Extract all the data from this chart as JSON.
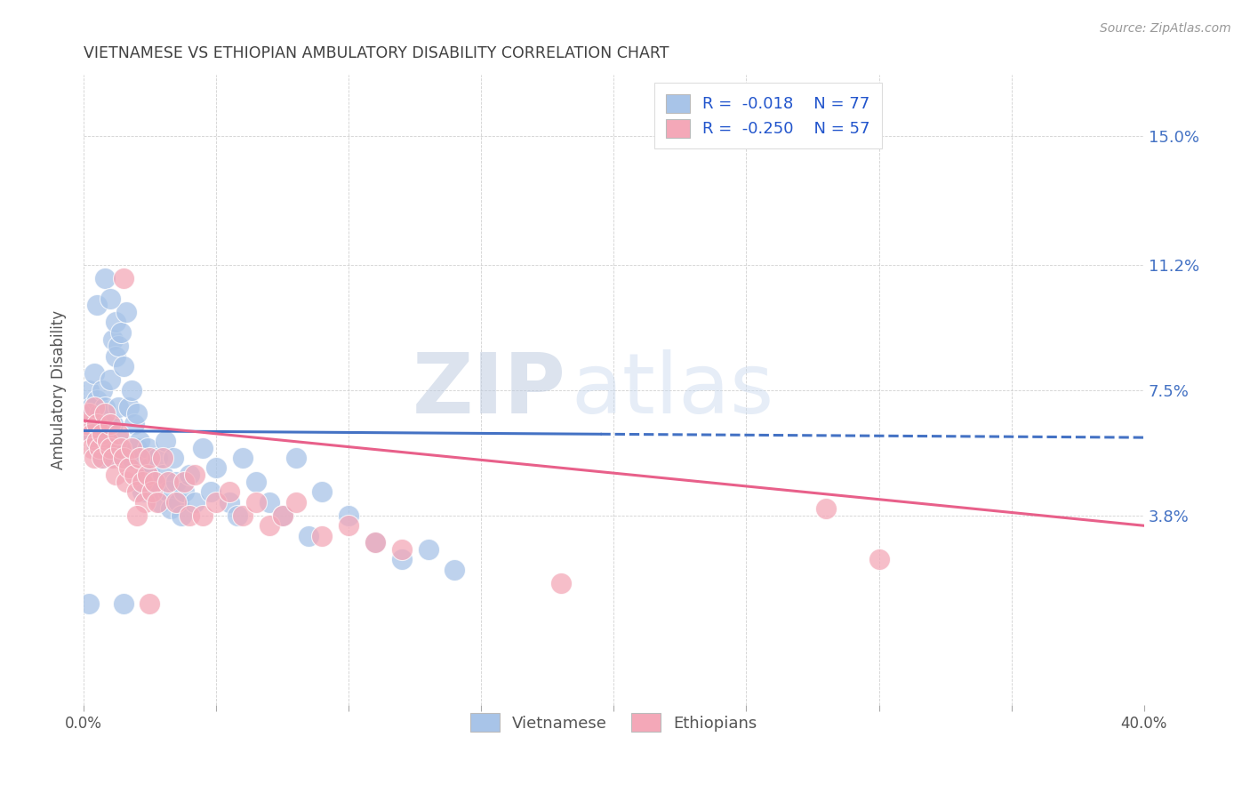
{
  "title": "VIETNAMESE VS ETHIOPIAN AMBULATORY DISABILITY CORRELATION CHART",
  "source": "Source: ZipAtlas.com",
  "ylabel": "Ambulatory Disability",
  "ytick_labels": [
    "15.0%",
    "11.2%",
    "7.5%",
    "3.8%"
  ],
  "ytick_values": [
    0.15,
    0.112,
    0.075,
    0.038
  ],
  "xmin": 0.0,
  "xmax": 0.4,
  "ymin": -0.018,
  "ymax": 0.168,
  "watermark_zip": "ZIP",
  "watermark_atlas": "atlas",
  "legend_r1": "-0.018",
  "legend_n1": "77",
  "legend_r2": "-0.250",
  "legend_n2": "57",
  "color_vietnamese": "#A8C4E8",
  "color_ethiopians": "#F4A8B8",
  "line_color_vietnamese": "#4472C4",
  "line_color_ethiopians": "#E8608A",
  "background_color": "#FFFFFF",
  "grid_color": "#CCCCCC",
  "title_color": "#404040",
  "axis_label_color": "#555555",
  "right_tick_color": "#4472C4",
  "viet_trend_x": [
    0.0,
    0.195,
    0.4
  ],
  "viet_trend_y": [
    0.063,
    0.062,
    0.061
  ],
  "viet_trend_solid_end": 0.195,
  "eth_trend_x": [
    0.0,
    0.4
  ],
  "eth_trend_y": [
    0.066,
    0.035
  ],
  "vietnamese_scatter": [
    [
      0.001,
      0.068
    ],
    [
      0.002,
      0.075
    ],
    [
      0.003,
      0.062
    ],
    [
      0.003,
      0.07
    ],
    [
      0.004,
      0.065
    ],
    [
      0.004,
      0.08
    ],
    [
      0.005,
      0.058
    ],
    [
      0.005,
      0.072
    ],
    [
      0.006,
      0.068
    ],
    [
      0.006,
      0.06
    ],
    [
      0.007,
      0.075
    ],
    [
      0.007,
      0.055
    ],
    [
      0.008,
      0.07
    ],
    [
      0.008,
      0.062
    ],
    [
      0.009,
      0.065
    ],
    [
      0.009,
      0.058
    ],
    [
      0.01,
      0.078
    ],
    [
      0.01,
      0.055
    ],
    [
      0.011,
      0.065
    ],
    [
      0.011,
      0.09
    ],
    [
      0.012,
      0.095
    ],
    [
      0.012,
      0.085
    ],
    [
      0.013,
      0.088
    ],
    [
      0.013,
      0.07
    ],
    [
      0.014,
      0.092
    ],
    [
      0.014,
      0.06
    ],
    [
      0.015,
      0.082
    ],
    [
      0.015,
      0.055
    ],
    [
      0.016,
      0.098
    ],
    [
      0.017,
      0.07
    ],
    [
      0.018,
      0.075
    ],
    [
      0.018,
      0.055
    ],
    [
      0.019,
      0.065
    ],
    [
      0.02,
      0.058
    ],
    [
      0.02,
      0.068
    ],
    [
      0.021,
      0.06
    ],
    [
      0.022,
      0.055
    ],
    [
      0.022,
      0.045
    ],
    [
      0.023,
      0.05
    ],
    [
      0.024,
      0.058
    ],
    [
      0.025,
      0.052
    ],
    [
      0.026,
      0.048
    ],
    [
      0.027,
      0.045
    ],
    [
      0.028,
      0.055
    ],
    [
      0.029,
      0.042
    ],
    [
      0.03,
      0.05
    ],
    [
      0.031,
      0.06
    ],
    [
      0.032,
      0.045
    ],
    [
      0.033,
      0.04
    ],
    [
      0.034,
      0.055
    ],
    [
      0.035,
      0.048
    ],
    [
      0.036,
      0.042
    ],
    [
      0.037,
      0.038
    ],
    [
      0.038,
      0.045
    ],
    [
      0.04,
      0.05
    ],
    [
      0.042,
      0.042
    ],
    [
      0.045,
      0.058
    ],
    [
      0.048,
      0.045
    ],
    [
      0.05,
      0.052
    ],
    [
      0.055,
      0.042
    ],
    [
      0.058,
      0.038
    ],
    [
      0.06,
      0.055
    ],
    [
      0.065,
      0.048
    ],
    [
      0.07,
      0.042
    ],
    [
      0.075,
      0.038
    ],
    [
      0.08,
      0.055
    ],
    [
      0.085,
      0.032
    ],
    [
      0.09,
      0.045
    ],
    [
      0.1,
      0.038
    ],
    [
      0.11,
      0.03
    ],
    [
      0.12,
      0.025
    ],
    [
      0.13,
      0.028
    ],
    [
      0.14,
      0.022
    ],
    [
      0.005,
      0.1
    ],
    [
      0.008,
      0.108
    ],
    [
      0.01,
      0.102
    ],
    [
      0.002,
      0.012
    ],
    [
      0.015,
      0.012
    ]
  ],
  "ethiopian_scatter": [
    [
      0.001,
      0.065
    ],
    [
      0.002,
      0.068
    ],
    [
      0.003,
      0.062
    ],
    [
      0.003,
      0.058
    ],
    [
      0.004,
      0.07
    ],
    [
      0.004,
      0.055
    ],
    [
      0.005,
      0.065
    ],
    [
      0.005,
      0.06
    ],
    [
      0.006,
      0.058
    ],
    [
      0.007,
      0.062
    ],
    [
      0.007,
      0.055
    ],
    [
      0.008,
      0.068
    ],
    [
      0.009,
      0.06
    ],
    [
      0.01,
      0.058
    ],
    [
      0.01,
      0.065
    ],
    [
      0.011,
      0.055
    ],
    [
      0.012,
      0.05
    ],
    [
      0.013,
      0.062
    ],
    [
      0.014,
      0.058
    ],
    [
      0.015,
      0.055
    ],
    [
      0.016,
      0.048
    ],
    [
      0.017,
      0.052
    ],
    [
      0.018,
      0.058
    ],
    [
      0.019,
      0.05
    ],
    [
      0.02,
      0.045
    ],
    [
      0.021,
      0.055
    ],
    [
      0.022,
      0.048
    ],
    [
      0.023,
      0.042
    ],
    [
      0.024,
      0.05
    ],
    [
      0.025,
      0.055
    ],
    [
      0.026,
      0.045
    ],
    [
      0.027,
      0.048
    ],
    [
      0.028,
      0.042
    ],
    [
      0.03,
      0.055
    ],
    [
      0.032,
      0.048
    ],
    [
      0.035,
      0.042
    ],
    [
      0.038,
      0.048
    ],
    [
      0.04,
      0.038
    ],
    [
      0.042,
      0.05
    ],
    [
      0.045,
      0.038
    ],
    [
      0.05,
      0.042
    ],
    [
      0.055,
      0.045
    ],
    [
      0.06,
      0.038
    ],
    [
      0.065,
      0.042
    ],
    [
      0.07,
      0.035
    ],
    [
      0.075,
      0.038
    ],
    [
      0.08,
      0.042
    ],
    [
      0.09,
      0.032
    ],
    [
      0.1,
      0.035
    ],
    [
      0.11,
      0.03
    ],
    [
      0.015,
      0.108
    ],
    [
      0.02,
      0.038
    ],
    [
      0.12,
      0.028
    ],
    [
      0.28,
      0.04
    ],
    [
      0.3,
      0.025
    ],
    [
      0.025,
      0.012
    ],
    [
      0.18,
      0.018
    ]
  ]
}
